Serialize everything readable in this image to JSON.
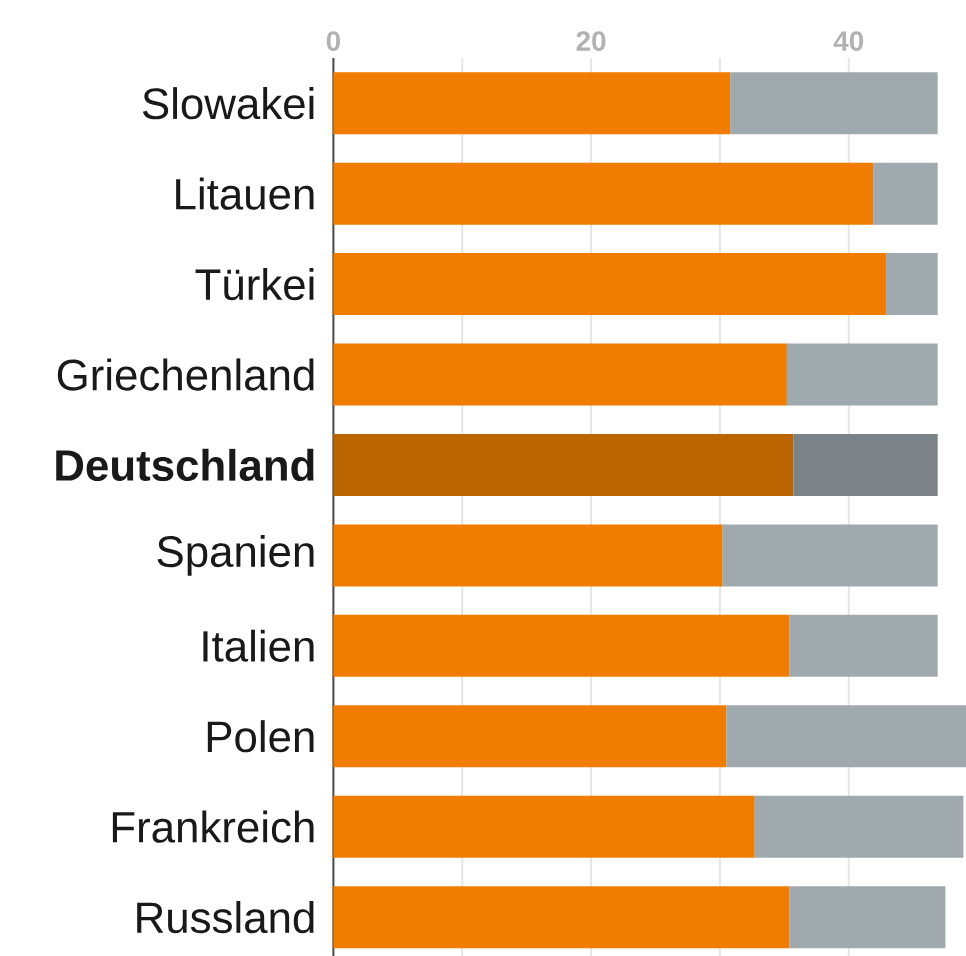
{
  "chart_data": {
    "type": "bar",
    "orientation": "horizontal",
    "stacked": true,
    "categories": [
      "Slowakei",
      "Litauen",
      "Türkei",
      "Griechenland",
      "**Deutschland**",
      "Spanien",
      "Italien",
      "Polen",
      "Frankreich",
      "Russland"
    ],
    "series": [
      {
        "colors": [
          "#f07d00",
          "#f07d00",
          "#f07d00",
          "#f07d00",
          "#bb6500",
          "#f07d00",
          "#f07d00",
          "#f07d00",
          "#f07d00",
          "#f07d00"
        ],
        "values": [
          30.8,
          41.9,
          42.9,
          35.2,
          35.7,
          30.2,
          35.4,
          30.5,
          32.7,
          35.4
        ]
      },
      {
        "colors": [
          "#a0a9ae",
          "#a0a9ae",
          "#a0a9ae",
          "#a0a9ae",
          "#7b8288",
          "#a0a9ae",
          "#a0a9ae",
          "#a0a9ae",
          "#a0a9ae",
          "#a0a9ae"
        ],
        "values": [
          16.1,
          5.0,
          4.0,
          11.7,
          11.2,
          16.7,
          11.5,
          18.6,
          16.2,
          12.1
        ]
      }
    ],
    "xlim": [
      0,
      49.1
    ],
    "xticks": [
      0,
      {
        "value": 10,
        "label": null
      },
      20,
      {
        "value": 30,
        "label": null
      },
      40
    ],
    "grid": "x"
  }
}
